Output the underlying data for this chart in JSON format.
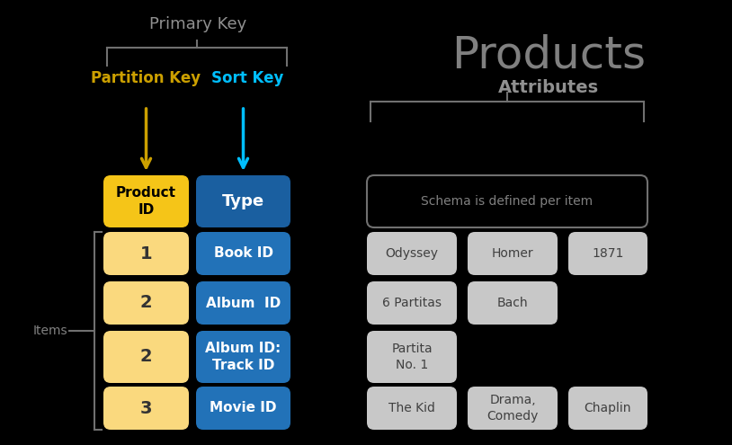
{
  "bg_color": "#000000",
  "title": "Products",
  "title_color": "#808080",
  "title_fontsize": 36,
  "primary_key_label": "Primary Key",
  "primary_key_color": "#909090",
  "attributes_label": "Attributes",
  "attributes_color": "#909090",
  "partition_key_label": "Partition Key",
  "partition_key_color": "#CCA000",
  "sort_key_label": "Sort Key",
  "sort_key_color": "#00BFFF",
  "items_label": "Items",
  "items_color": "#808080",
  "schema_text": "Schema is defined per item",
  "schema_color": "#808080",
  "yellow_color": "#F5C518",
  "yellow_light_color": "#FAD97E",
  "blue_dark_color": "#1A5FA0",
  "blue_color": "#2272B8",
  "gray_cell_color": "#C8C8C8",
  "line_color": "#707070",
  "rows": [
    [
      "1",
      "Book ID",
      "Odyssey",
      "Homer",
      "1871"
    ],
    [
      "2",
      "Album  ID",
      "6 Partitas",
      "Bach",
      ""
    ],
    [
      "2",
      "Album ID:\nTrack ID",
      "Partita\nNo. 1",
      "",
      ""
    ],
    [
      "3",
      "Movie ID",
      "The Kid",
      "Drama,\nComedy",
      "Chaplin"
    ]
  ]
}
